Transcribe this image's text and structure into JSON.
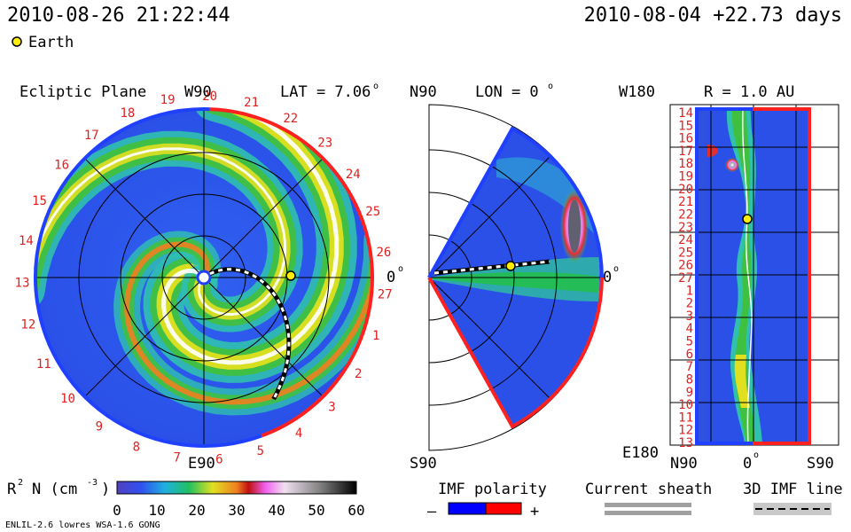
{
  "header": {
    "sim_time": "2010-08-26 21:22:44",
    "ref_time": "2010-08-04 +22.73 days",
    "earth_legend": "Earth"
  },
  "panels": {
    "ecliptic": {
      "title": "Ecliptic Plane",
      "top": "W90",
      "bottom": "E90",
      "right": "0",
      "lat_prefix": "LAT = 7.06",
      "lat_unit": "o"
    },
    "meridional": {
      "top": "N90",
      "bottom": "S90",
      "right": "0",
      "lon_prefix": "LON = 0",
      "lon_unit": "o"
    },
    "radial": {
      "title": "R = 1.0 AU",
      "top_left": "W180",
      "bottom_left": "E180",
      "x_left": "N90",
      "x_mid": "0",
      "x_right": "S90"
    }
  },
  "carrington_labels": [
    "19",
    "20",
    "21",
    "22",
    "23",
    "24",
    "25",
    "26",
    "27",
    "1",
    "2",
    "3",
    "4",
    "5",
    "6",
    "7",
    "8",
    "9",
    "10",
    "11",
    "12",
    "13",
    "14",
    "15",
    "16",
    "17",
    "18"
  ],
  "strip_labels": [
    "14",
    "15",
    "16",
    "17",
    "18",
    "19",
    "20",
    "21",
    "22",
    "23",
    "24",
    "25",
    "26",
    "27",
    "1",
    "2",
    "3",
    "4",
    "5",
    "6",
    "7",
    "8",
    "9",
    "10",
    "11",
    "12",
    "13"
  ],
  "colorbar": {
    "label": "R",
    "label_sup": "2",
    "label_rest": "N (cm",
    "label_exp": "-3",
    "label_close": ")",
    "ticks": [
      "0",
      "10",
      "20",
      "30",
      "40",
      "50",
      "60"
    ]
  },
  "legends": {
    "imf_polarity": "IMF polarity",
    "minus": "–",
    "plus": "+",
    "current_sheath": "Current sheath",
    "imf_line": "3D IMF line"
  },
  "footer": {
    "model": "ENLIL-2.6 lowres WSA-1.6 GONG"
  },
  "colors": {
    "earth": "#ffee00",
    "positive": "#ff0000",
    "negative": "#0000ff",
    "sector_red": "#ff2020",
    "sector_blue": "#2040ff"
  },
  "chart_data": [
    {
      "type": "heatmap",
      "title": "Ecliptic Plane",
      "quantity": "R2 N (cm-3)",
      "range": [
        0,
        60
      ]
    },
    {
      "type": "heatmap",
      "title": "LON = 0",
      "quantity": "R2 N (cm-3)",
      "range": [
        0,
        60
      ]
    },
    {
      "type": "heatmap",
      "title": "R = 1.0 AU",
      "quantity": "R2 N (cm-3)",
      "range": [
        0,
        60
      ]
    }
  ]
}
